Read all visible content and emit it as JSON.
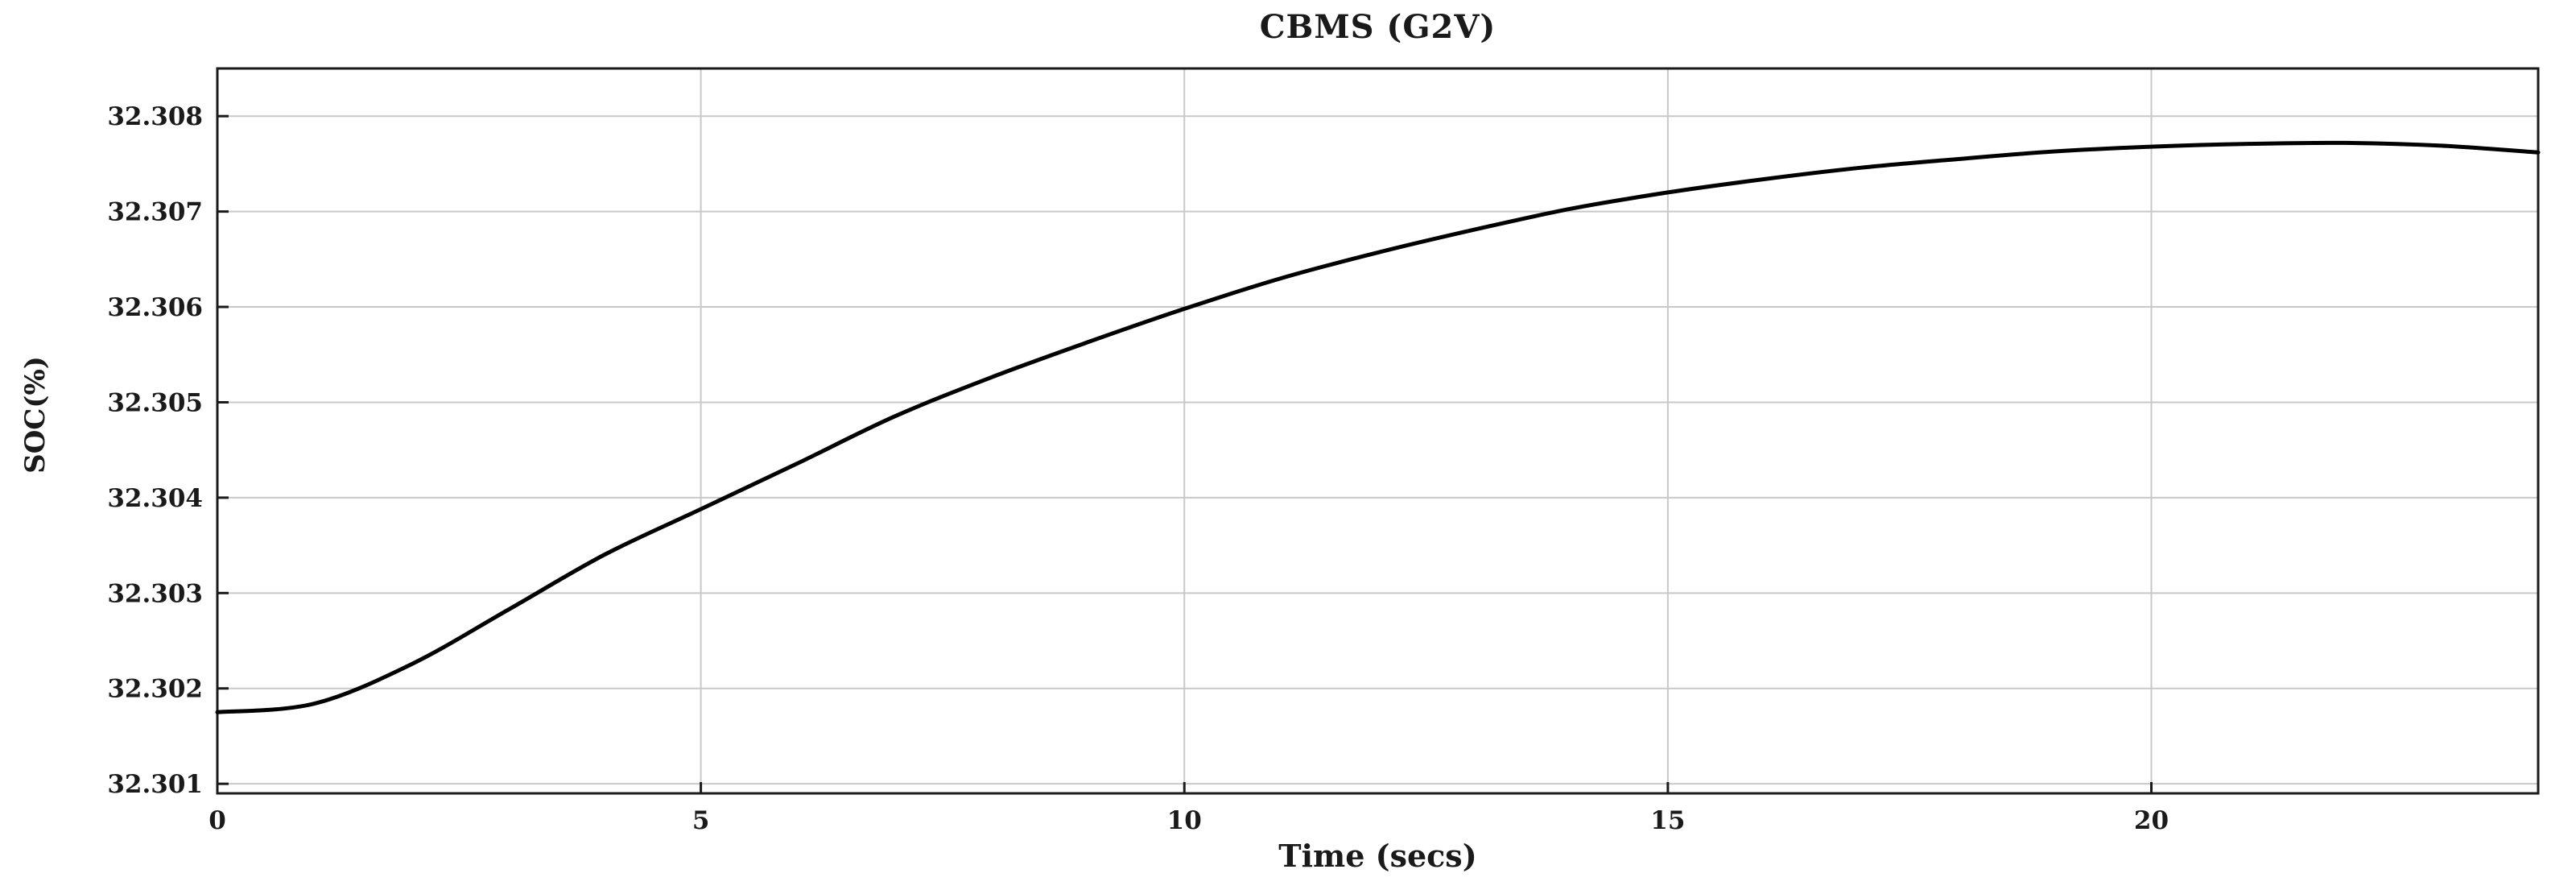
{
  "chart_data": {
    "type": "line",
    "title": "CBMS (G2V)",
    "xlabel": "Time (secs)",
    "ylabel": "SOC(%)",
    "xlim": [
      0,
      24
    ],
    "ylim": [
      32.3009,
      32.3085
    ],
    "xticks": [
      0,
      5,
      10,
      15,
      20
    ],
    "xtick_labels": [
      "0",
      "5",
      "10",
      "15",
      "20"
    ],
    "yticks": [
      32.301,
      32.302,
      32.303,
      32.304,
      32.305,
      32.306,
      32.307,
      32.308
    ],
    "ytick_labels": [
      "32.301",
      "32.302",
      "32.303",
      "32.304",
      "32.305",
      "32.306",
      "32.307",
      "32.308"
    ],
    "grid": true,
    "legend_position": "none",
    "background_color": "#ffffff",
    "grid_color": "#c8c8c8",
    "axis_color": "#1a1a1a",
    "series": [
      {
        "name": "SOC",
        "color": "#000000",
        "x": [
          0,
          1,
          2,
          3,
          4,
          5,
          6,
          7,
          8,
          9,
          10,
          11,
          12,
          13,
          14,
          15,
          16,
          17,
          18,
          19,
          20,
          21,
          22,
          23,
          24
        ],
        "y": [
          32.30175,
          32.30184,
          32.30225,
          32.30282,
          32.3034,
          32.30388,
          32.30436,
          32.30485,
          32.30526,
          32.30563,
          32.30598,
          32.3063,
          32.30657,
          32.30681,
          32.30703,
          32.3072,
          32.30734,
          32.30746,
          32.30755,
          32.30763,
          32.30768,
          32.30771,
          32.30772,
          32.30769,
          32.30762
        ]
      }
    ]
  }
}
